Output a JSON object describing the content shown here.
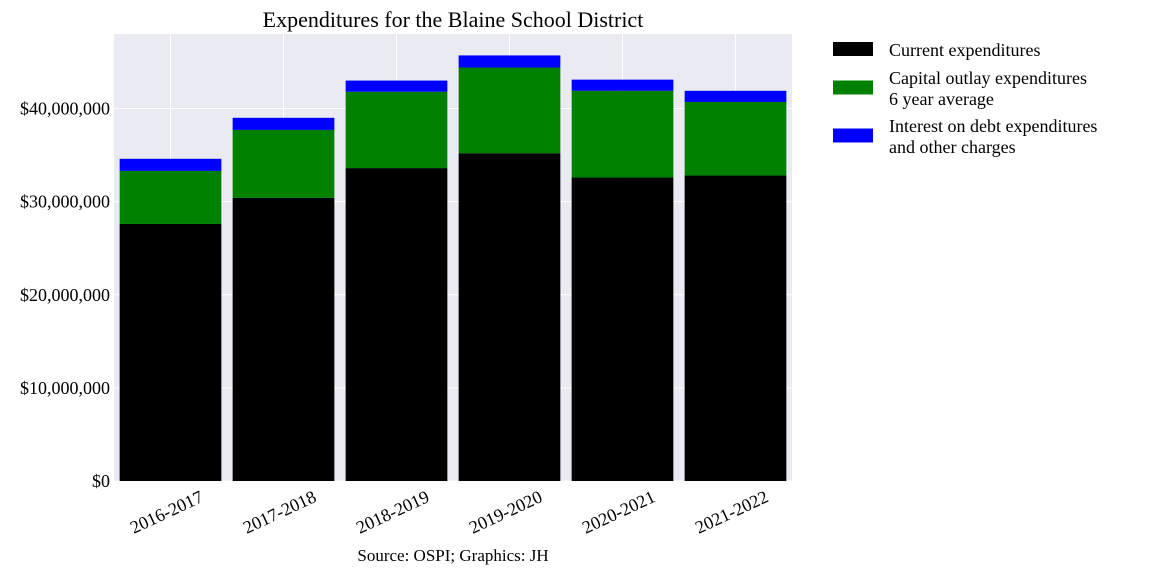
{
  "chart_data": {
    "type": "bar",
    "stacked": true,
    "title": "Expenditures for the Blaine School District",
    "xlabel": "Source: OSPI; Graphics: JH",
    "ylabel": "",
    "categories": [
      "2016-2017",
      "2017-2018",
      "2018-2019",
      "2019-2020",
      "2020-2021",
      "2021-2022"
    ],
    "ylim": [
      0,
      48000000
    ],
    "yticks": [
      0,
      10000000,
      20000000,
      30000000,
      40000000
    ],
    "ytick_labels": [
      "$0",
      "$10,000,000",
      "$20,000,000",
      "$30,000,000",
      "$40,000,000"
    ],
    "grid": true,
    "legend_position": "outside-right-top",
    "series": [
      {
        "name": "Current expenditures",
        "name_lines": [
          "Current expenditures"
        ],
        "color": "#000000",
        "values": [
          27600000,
          30400000,
          33600000,
          35200000,
          32600000,
          32800000
        ]
      },
      {
        "name": "Capital outlay expenditures 6 year average",
        "name_lines": [
          "Capital outlay expenditures",
          "6 year average"
        ],
        "color": "#008000",
        "values": [
          5700000,
          7300000,
          8200000,
          9200000,
          9300000,
          7900000
        ]
      },
      {
        "name": "Interest on debt expenditures and other charges",
        "name_lines": [
          "Interest on debt expenditures",
          "and other charges"
        ],
        "color": "#0000ff",
        "values": [
          1300000,
          1300000,
          1200000,
          1300000,
          1200000,
          1200000
        ]
      }
    ],
    "background_color": "#eaeaf2",
    "grid_color": "#ffffff"
  }
}
